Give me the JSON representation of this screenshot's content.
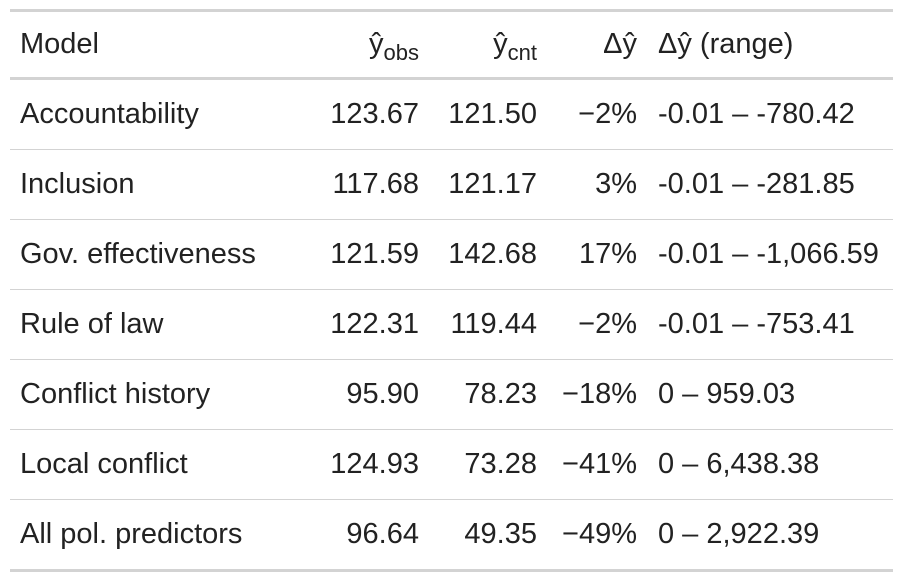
{
  "table": {
    "headers": {
      "model": "Model",
      "obs_main": "ŷ",
      "obs_sub": "obs",
      "cnt_main": "ŷ",
      "cnt_sub": "cnt",
      "delta": "Δŷ",
      "range": "Δŷ (range)"
    },
    "rows": [
      {
        "model": "Accountability",
        "obs": "123.67",
        "cnt": "121.50",
        "delta": "−2%",
        "range": "-0.01 – -780.42"
      },
      {
        "model": "Inclusion",
        "obs": "117.68",
        "cnt": "121.17",
        "delta": "3%",
        "range": "-0.01 – -281.85"
      },
      {
        "model": "Gov. effectiveness",
        "obs": "121.59",
        "cnt": "142.68",
        "delta": "17%",
        "range": "-0.01 – -1,066.59"
      },
      {
        "model": "Rule of law",
        "obs": "122.31",
        "cnt": "119.44",
        "delta": "−2%",
        "range": "-0.01 – -753.41"
      },
      {
        "model": "Conflict history",
        "obs": "95.90",
        "cnt": "78.23",
        "delta": "−18%",
        "range": "0 – 959.03"
      },
      {
        "model": "Local conflict",
        "obs": "124.93",
        "cnt": "73.28",
        "delta": "−41%",
        "range": "0 – 6,438.38"
      },
      {
        "model": "All pol. predictors",
        "obs": "96.64",
        "cnt": "49.35",
        "delta": "−49%",
        "range": "0 – 2,922.39"
      }
    ]
  },
  "colors": {
    "text": "#222222",
    "rule": "#d3d3d3",
    "background": "#ffffff"
  }
}
